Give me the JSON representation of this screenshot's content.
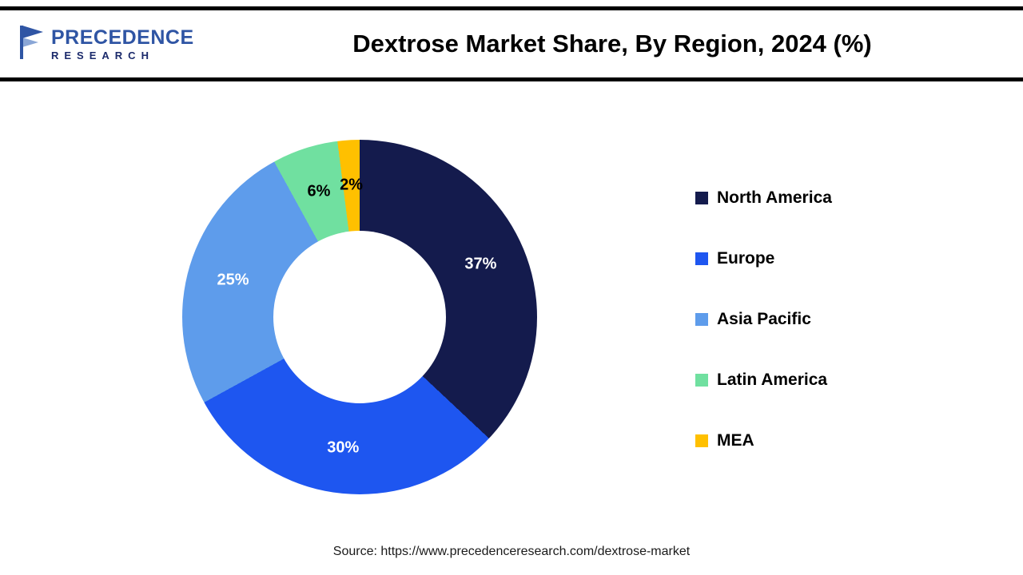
{
  "header": {
    "logo": {
      "line1": "PRECEDENCE",
      "line2": "RESEARCH"
    },
    "title": "Dextrose Market Share, By Region, 2024 (%)"
  },
  "chart_data": {
    "type": "pie",
    "subtype": "donut",
    "title": "Dextrose Market Share, By Region, 2024 (%)",
    "start_angle_deg": 0,
    "direction": "clockwise",
    "legend_position": "right",
    "series": [
      {
        "name": "North America",
        "value": 37,
        "label": "37%",
        "color": "#141b4d",
        "label_color": "#ffffff"
      },
      {
        "name": "Europe",
        "value": 30,
        "label": "30%",
        "color": "#1e56f0",
        "label_color": "#ffffff"
      },
      {
        "name": "Asia Pacific",
        "value": 25,
        "label": "25%",
        "color": "#5e9ceb",
        "label_color": "#ffffff"
      },
      {
        "name": "Latin America",
        "value": 6,
        "label": "6%",
        "color": "#70e0a0",
        "label_color": "#000000"
      },
      {
        "name": "MEA",
        "value": 2,
        "label": "2%",
        "color": "#ffc000",
        "label_color": "#000000"
      }
    ]
  },
  "source": "Source: https://www.precedenceresearch.com/dextrose-market"
}
